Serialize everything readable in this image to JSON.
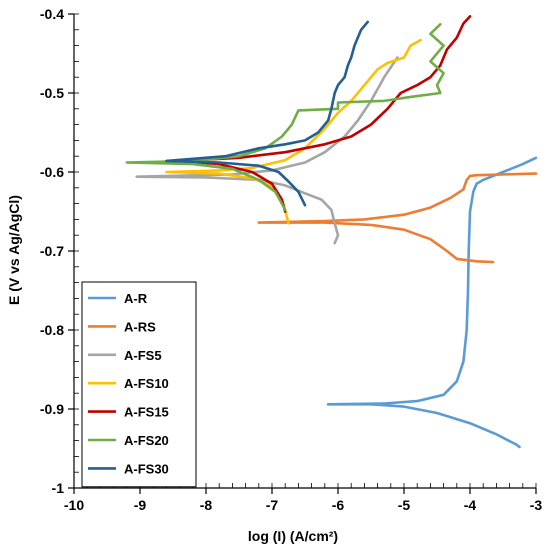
{
  "chart_data": {
    "type": "line",
    "xlabel": "log (I) (A/cm²)",
    "ylabel": "E (V vs Ag/AgCl)",
    "xlim": [
      -10,
      -3
    ],
    "ylim": [
      -1,
      -0.4
    ],
    "xticks": [
      -10,
      -9,
      -8,
      -7,
      -6,
      -5,
      -4,
      -3
    ],
    "yticks": [
      -1,
      -0.9,
      -0.8,
      -0.7,
      -0.6,
      -0.5,
      -0.4
    ],
    "xtick_labels": [
      "-10",
      "-9",
      "-8",
      "-7",
      "-6",
      "-5",
      "-4",
      "-3"
    ],
    "ytick_labels": [
      "-1",
      "-0.9",
      "-0.8",
      "-0.7",
      "-0.6",
      "-0.5",
      "-0.4"
    ],
    "grid": false,
    "legend_position": "bottom-left",
    "series": [
      {
        "name": "A-R",
        "color": "#5B9BD5",
        "points": [
          [
            -3.0,
            -0.582
          ],
          [
            -3.2,
            -0.59
          ],
          [
            -3.5,
            -0.6
          ],
          [
            -3.8,
            -0.61
          ],
          [
            -3.9,
            -0.615
          ],
          [
            -3.95,
            -0.625
          ],
          [
            -4.0,
            -0.65
          ],
          [
            -4.02,
            -0.7
          ],
          [
            -4.03,
            -0.75
          ],
          [
            -4.05,
            -0.8
          ],
          [
            -4.1,
            -0.84
          ],
          [
            -4.2,
            -0.865
          ],
          [
            -4.4,
            -0.882
          ],
          [
            -4.8,
            -0.89
          ],
          [
            -5.3,
            -0.893
          ],
          [
            -6.15,
            -0.894
          ],
          [
            -5.5,
            -0.894
          ],
          [
            -5.0,
            -0.897
          ],
          [
            -4.5,
            -0.905
          ],
          [
            -4.0,
            -0.918
          ],
          [
            -3.6,
            -0.932
          ],
          [
            -3.3,
            -0.945
          ],
          [
            -3.25,
            -0.948
          ]
        ]
      },
      {
        "name": "A-RS",
        "color": "#ED7D31",
        "points": [
          [
            -3.0,
            -0.602
          ],
          [
            -3.5,
            -0.603
          ],
          [
            -3.9,
            -0.604
          ],
          [
            -4.0,
            -0.605
          ],
          [
            -4.05,
            -0.61
          ],
          [
            -4.1,
            -0.622
          ],
          [
            -4.3,
            -0.633
          ],
          [
            -4.6,
            -0.645
          ],
          [
            -5.0,
            -0.654
          ],
          [
            -5.6,
            -0.66
          ],
          [
            -6.2,
            -0.662
          ],
          [
            -7.2,
            -0.664
          ],
          [
            -6.2,
            -0.664
          ],
          [
            -5.5,
            -0.667
          ],
          [
            -5.0,
            -0.673
          ],
          [
            -4.6,
            -0.685
          ],
          [
            -4.35,
            -0.7
          ],
          [
            -4.2,
            -0.71
          ],
          [
            -3.9,
            -0.713
          ],
          [
            -3.65,
            -0.714
          ]
        ]
      },
      {
        "name": "A-FS5",
        "color": "#A5A5A5",
        "points": [
          [
            -5.1,
            -0.455
          ],
          [
            -5.3,
            -0.48
          ],
          [
            -5.5,
            -0.51
          ],
          [
            -5.7,
            -0.535
          ],
          [
            -5.9,
            -0.555
          ],
          [
            -6.2,
            -0.575
          ],
          [
            -6.5,
            -0.588
          ],
          [
            -7.0,
            -0.598
          ],
          [
            -7.6,
            -0.603
          ],
          [
            -9.05,
            -0.606
          ],
          [
            -8.0,
            -0.607
          ],
          [
            -7.2,
            -0.61
          ],
          [
            -6.8,
            -0.617
          ],
          [
            -6.5,
            -0.627
          ],
          [
            -6.25,
            -0.635
          ],
          [
            -6.1,
            -0.648
          ],
          [
            -6.05,
            -0.665
          ],
          [
            -6.0,
            -0.68
          ],
          [
            -6.05,
            -0.69
          ]
        ]
      },
      {
        "name": "A-FS10",
        "color": "#FFC000",
        "points": [
          [
            -4.75,
            -0.433
          ],
          [
            -4.9,
            -0.44
          ],
          [
            -5.0,
            -0.455
          ],
          [
            -5.25,
            -0.462
          ],
          [
            -5.4,
            -0.47
          ],
          [
            -5.5,
            -0.48
          ],
          [
            -5.65,
            -0.495
          ],
          [
            -5.8,
            -0.51
          ],
          [
            -6.0,
            -0.525
          ],
          [
            -6.2,
            -0.545
          ],
          [
            -6.5,
            -0.57
          ],
          [
            -6.8,
            -0.585
          ],
          [
            -7.3,
            -0.595
          ],
          [
            -7.8,
            -0.598
          ],
          [
            -8.6,
            -0.6
          ],
          [
            -7.8,
            -0.602
          ],
          [
            -7.3,
            -0.608
          ],
          [
            -7.0,
            -0.618
          ],
          [
            -6.85,
            -0.635
          ],
          [
            -6.78,
            -0.655
          ],
          [
            -6.75,
            -0.665
          ]
        ]
      },
      {
        "name": "A-FS15",
        "color": "#C00000",
        "points": [
          [
            -4.0,
            -0.403
          ],
          [
            -4.1,
            -0.412
          ],
          [
            -4.2,
            -0.43
          ],
          [
            -4.35,
            -0.445
          ],
          [
            -4.45,
            -0.465
          ],
          [
            -4.6,
            -0.48
          ],
          [
            -4.8,
            -0.49
          ],
          [
            -5.05,
            -0.5
          ],
          [
            -5.25,
            -0.52
          ],
          [
            -5.5,
            -0.54
          ],
          [
            -5.8,
            -0.555
          ],
          [
            -6.2,
            -0.565
          ],
          [
            -6.8,
            -0.575
          ],
          [
            -7.5,
            -0.582
          ],
          [
            -8.4,
            -0.586
          ],
          [
            -7.8,
            -0.59
          ],
          [
            -7.3,
            -0.6
          ],
          [
            -7.0,
            -0.615
          ],
          [
            -6.85,
            -0.635
          ],
          [
            -6.8,
            -0.65
          ]
        ]
      },
      {
        "name": "A-FS20",
        "color": "#70AD47",
        "points": [
          [
            -4.45,
            -0.413
          ],
          [
            -4.6,
            -0.425
          ],
          [
            -4.4,
            -0.44
          ],
          [
            -4.6,
            -0.46
          ],
          [
            -4.4,
            -0.475
          ],
          [
            -4.5,
            -0.49
          ],
          [
            -4.45,
            -0.5
          ],
          [
            -4.9,
            -0.505
          ],
          [
            -5.3,
            -0.51
          ],
          [
            -6.0,
            -0.512
          ],
          [
            -6.0,
            -0.52
          ],
          [
            -6.6,
            -0.522
          ],
          [
            -6.7,
            -0.54
          ],
          [
            -6.85,
            -0.555
          ],
          [
            -7.1,
            -0.57
          ],
          [
            -7.5,
            -0.58
          ],
          [
            -8.2,
            -0.586
          ],
          [
            -9.2,
            -0.588
          ],
          [
            -8.2,
            -0.59
          ],
          [
            -7.6,
            -0.596
          ],
          [
            -7.2,
            -0.61
          ],
          [
            -6.95,
            -0.625
          ],
          [
            -6.85,
            -0.64
          ],
          [
            -6.8,
            -0.648
          ]
        ]
      },
      {
        "name": "A-FS30",
        "color": "#255E91",
        "points": [
          [
            -5.55,
            -0.41
          ],
          [
            -5.65,
            -0.42
          ],
          [
            -5.75,
            -0.44
          ],
          [
            -5.8,
            -0.455
          ],
          [
            -5.85,
            -0.465
          ],
          [
            -5.9,
            -0.48
          ],
          [
            -6.0,
            -0.49
          ],
          [
            -6.05,
            -0.5
          ],
          [
            -6.1,
            -0.52
          ],
          [
            -6.15,
            -0.535
          ],
          [
            -6.3,
            -0.55
          ],
          [
            -6.5,
            -0.56
          ],
          [
            -6.8,
            -0.565
          ],
          [
            -7.2,
            -0.57
          ],
          [
            -7.7,
            -0.58
          ],
          [
            -8.6,
            -0.586
          ],
          [
            -7.8,
            -0.588
          ],
          [
            -7.2,
            -0.592
          ],
          [
            -6.9,
            -0.6
          ],
          [
            -6.75,
            -0.612
          ],
          [
            -6.6,
            -0.625
          ],
          [
            -6.5,
            -0.642
          ]
        ]
      }
    ]
  }
}
